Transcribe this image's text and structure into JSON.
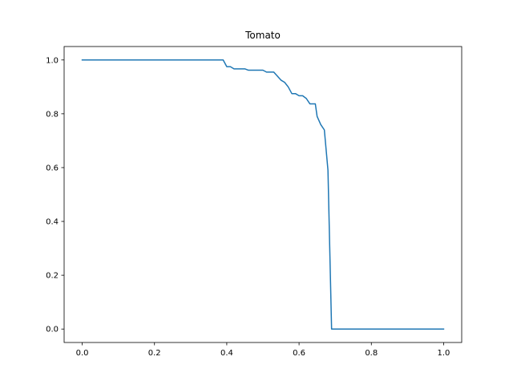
{
  "chart_data": {
    "type": "line",
    "title": "Tomato",
    "xlabel": "",
    "ylabel": "",
    "xlim": [
      -0.05,
      1.05
    ],
    "ylim": [
      -0.05,
      1.05
    ],
    "grid": false,
    "legend": "none",
    "xticks": [
      "0.0",
      "0.2",
      "0.4",
      "0.6",
      "0.8",
      "1.0"
    ],
    "yticks": [
      "0.0",
      "0.2",
      "0.4",
      "0.6",
      "0.8",
      "1.0"
    ],
    "series": [
      {
        "color": "#1f77b4",
        "x": [
          0.0,
          0.39,
          0.4,
          0.41,
          0.42,
          0.45,
          0.46,
          0.5,
          0.51,
          0.53,
          0.55,
          0.56,
          0.57,
          0.58,
          0.59,
          0.6,
          0.61,
          0.62,
          0.63,
          0.645,
          0.65,
          0.66,
          0.67,
          0.68,
          0.69,
          0.7,
          1.0
        ],
        "y": [
          1.0,
          1.0,
          0.975,
          0.975,
          0.967,
          0.967,
          0.962,
          0.962,
          0.955,
          0.955,
          0.925,
          0.917,
          0.9,
          0.875,
          0.875,
          0.867,
          0.867,
          0.857,
          0.837,
          0.837,
          0.79,
          0.76,
          0.74,
          0.59,
          0.0,
          0.0,
          0.0
        ]
      }
    ]
  }
}
